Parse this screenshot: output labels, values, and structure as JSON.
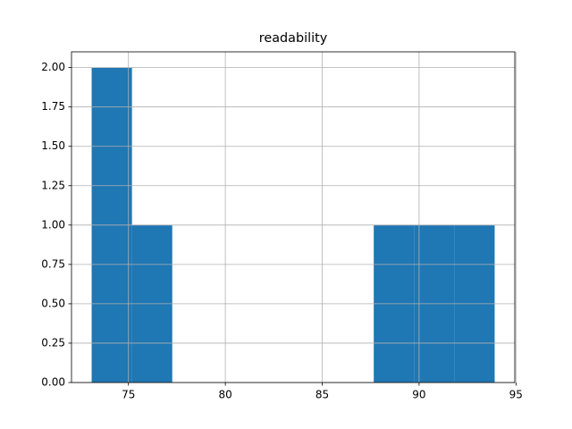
{
  "chart_data": {
    "type": "histogram",
    "title": "readability",
    "bins": [
      73.1,
      75.18,
      77.26,
      79.34,
      81.42,
      83.5,
      85.58,
      87.66,
      89.74,
      91.82,
      93.9
    ],
    "values": [
      2,
      1,
      0,
      0,
      0,
      0,
      0,
      1,
      1,
      1
    ],
    "color": "#1f77b4",
    "xlim": [
      72.06,
      94.94
    ],
    "xticks": [
      75,
      80,
      85,
      90,
      95
    ],
    "ylim": [
      0,
      2.1
    ],
    "yticks": [
      {
        "value": 0,
        "label": "0.00"
      },
      {
        "value": 0.25,
        "label": "0.25"
      },
      {
        "value": 0.5,
        "label": "0.50"
      },
      {
        "value": 0.75,
        "label": "0.75"
      },
      {
        "value": 1,
        "label": "1.00"
      },
      {
        "value": 1.25,
        "label": "1.25"
      },
      {
        "value": 1.5,
        "label": "1.50"
      },
      {
        "value": 1.75,
        "label": "1.75"
      },
      {
        "value": 2,
        "label": "2.00"
      }
    ],
    "grid": true
  }
}
